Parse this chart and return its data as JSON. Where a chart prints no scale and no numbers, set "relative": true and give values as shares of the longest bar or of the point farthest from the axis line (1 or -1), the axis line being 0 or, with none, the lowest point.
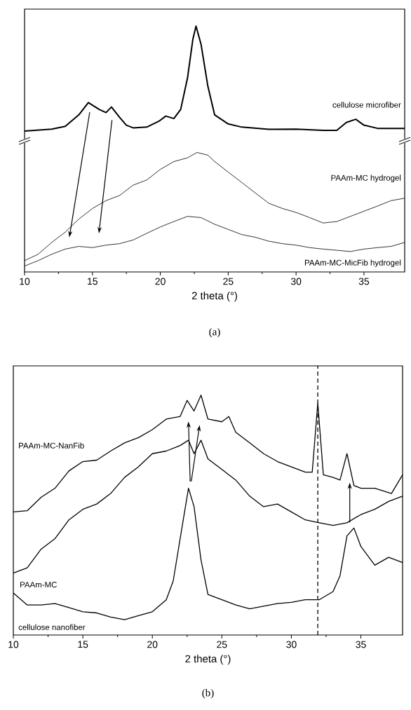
{
  "chart_data": [
    {
      "type": "line",
      "relative": true,
      "xlabel": "2 theta (°)",
      "xlim": [
        10,
        38
      ],
      "xticks": [
        10,
        15,
        20,
        25,
        30,
        35
      ],
      "tick_labels": "x",
      "annotations": [
        "(a)"
      ],
      "series": [
        {
          "name": "cellulose microfiber",
          "color": "#000000",
          "x": [
            10,
            12,
            13,
            14,
            14.7,
            15.5,
            16,
            16.4,
            17,
            17.5,
            18,
            19,
            19.9,
            20.4,
            21,
            21.5,
            22,
            22.4,
            22.63,
            23,
            23.5,
            24,
            25,
            26,
            28,
            30,
            32,
            33,
            33.7,
            34.4,
            35,
            36,
            38
          ],
          "values": [
            0.573,
            0.581,
            0.592,
            0.639,
            0.689,
            0.661,
            0.648,
            0.671,
            0.629,
            0.597,
            0.586,
            0.589,
            0.613,
            0.634,
            0.624,
            0.661,
            0.788,
            0.947,
            1.0,
            0.926,
            0.756,
            0.639,
            0.602,
            0.589,
            0.58,
            0.581,
            0.576,
            0.576,
            0.608,
            0.621,
            0.597,
            0.584,
            0.584
          ]
        },
        {
          "name": "PAAm-MC hydrogel",
          "color": "#000000",
          "x": [
            10,
            11,
            12,
            13,
            14,
            15,
            16,
            17,
            18,
            19,
            20,
            21,
            22,
            22.7,
            23.5,
            24,
            25,
            26,
            27,
            28,
            29,
            30,
            31,
            32,
            33,
            34,
            35,
            36,
            37,
            38
          ],
          "values": [
            0.046,
            0.072,
            0.12,
            0.162,
            0.215,
            0.258,
            0.29,
            0.311,
            0.353,
            0.374,
            0.417,
            0.449,
            0.464,
            0.486,
            0.475,
            0.449,
            0.406,
            0.364,
            0.321,
            0.279,
            0.258,
            0.242,
            0.221,
            0.199,
            0.205,
            0.226,
            0.247,
            0.268,
            0.29,
            0.3
          ]
        },
        {
          "name": "PAAm-MC-MicFib hydrogel",
          "color": "#000000",
          "x": [
            10,
            11,
            12,
            13,
            14,
            15,
            16,
            17,
            18,
            19,
            20,
            21,
            22,
            23,
            24,
            25,
            26,
            27,
            28,
            29,
            30,
            31,
            32,
            33,
            34,
            35,
            36,
            37,
            38
          ],
          "values": [
            0.024,
            0.046,
            0.072,
            0.093,
            0.104,
            0.099,
            0.109,
            0.115,
            0.13,
            0.157,
            0.183,
            0.205,
            0.226,
            0.221,
            0.194,
            0.173,
            0.152,
            0.141,
            0.125,
            0.115,
            0.109,
            0.099,
            0.093,
            0.088,
            0.083,
            0.093,
            0.099,
            0.104,
            0.12
          ]
        }
      ]
    },
    {
      "type": "line",
      "relative": true,
      "xlabel": "2 theta (°)",
      "xlim": [
        10,
        38
      ],
      "xticks": [
        10,
        15,
        20,
        25,
        30,
        35
      ],
      "tick_labels": "x",
      "annotations": [
        "(b)"
      ],
      "ref_lines": [
        {
          "axis": "x",
          "value": 31.9,
          "line_style": "dashed",
          "color": "#000000"
        }
      ],
      "series": [
        {
          "name": "PAAm-MC-NanFib",
          "color": "#000000",
          "x": [
            10,
            11,
            12,
            13,
            14,
            15,
            16,
            17,
            18,
            19,
            20,
            21,
            22,
            22.5,
            23,
            23.5,
            24,
            25,
            25.5,
            26,
            27,
            28,
            29,
            30,
            31,
            31.5,
            31.9,
            32.3,
            33,
            33.5,
            34,
            34.5,
            35,
            36,
            37.2,
            38
          ],
          "values": [
            0.513,
            0.518,
            0.574,
            0.612,
            0.684,
            0.723,
            0.729,
            0.767,
            0.801,
            0.823,
            0.856,
            0.9,
            0.911,
            0.978,
            0.934,
            1.0,
            0.9,
            0.889,
            0.911,
            0.845,
            0.801,
            0.756,
            0.723,
            0.701,
            0.679,
            0.679,
            0.967,
            0.668,
            0.657,
            0.646,
            0.756,
            0.623,
            0.612,
            0.612,
            0.59,
            0.668
          ]
        },
        {
          "name": "PAAm-MC",
          "color": "#000000",
          "x": [
            10,
            11,
            12,
            13,
            14,
            15,
            16,
            17,
            18,
            19,
            20,
            21,
            22,
            22.6,
            23,
            23.5,
            24,
            25,
            26,
            27,
            28,
            29,
            30,
            31,
            32,
            33,
            34,
            35,
            36,
            37,
            38
          ],
          "values": [
            0.258,
            0.28,
            0.358,
            0.402,
            0.48,
            0.524,
            0.546,
            0.59,
            0.657,
            0.701,
            0.756,
            0.767,
            0.79,
            0.812,
            0.756,
            0.812,
            0.734,
            0.69,
            0.646,
            0.579,
            0.535,
            0.546,
            0.513,
            0.48,
            0.468,
            0.457,
            0.468,
            0.502,
            0.524,
            0.557,
            0.579
          ]
        },
        {
          "name": "cellulose nanofiber",
          "color": "#000000",
          "x": [
            10,
            11,
            12,
            13,
            14,
            15,
            16,
            17,
            18,
            19,
            20,
            21,
            21.5,
            22,
            22.6,
            23,
            23.5,
            24,
            25,
            26,
            27,
            28,
            29,
            30,
            31,
            32,
            33,
            33.5,
            34,
            34.5,
            35,
            36,
            37,
            38
          ],
          "values": [
            0.175,
            0.125,
            0.125,
            0.131,
            0.114,
            0.097,
            0.092,
            0.075,
            0.064,
            0.081,
            0.097,
            0.147,
            0.225,
            0.402,
            0.612,
            0.535,
            0.313,
            0.169,
            0.147,
            0.125,
            0.109,
            0.12,
            0.131,
            0.136,
            0.147,
            0.147,
            0.181,
            0.247,
            0.413,
            0.446,
            0.369,
            0.291,
            0.324,
            0.302
          ]
        }
      ]
    }
  ]
}
